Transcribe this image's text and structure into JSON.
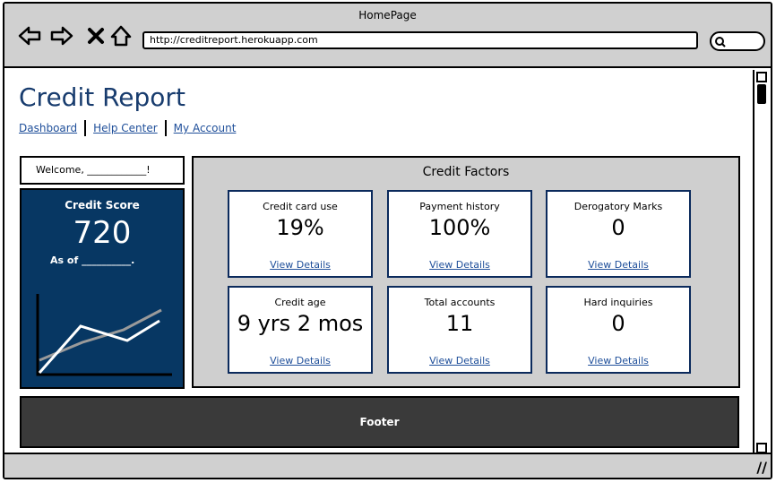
{
  "window": {
    "title": "HomePage",
    "url": "http://creditreport.herokuapp.com"
  },
  "page": {
    "title": "Credit Report",
    "links": [
      "Dashboard",
      "Help Center",
      "My Account"
    ]
  },
  "welcome": "Welcome, ____________!",
  "score": {
    "label": "Credit Score",
    "value": "720",
    "as_of": "As of __________."
  },
  "factors": {
    "title": "Credit Factors",
    "cards": [
      {
        "label": "Credit card use",
        "value": "19%",
        "link": "View Details"
      },
      {
        "label": "Payment history",
        "value": "100%",
        "link": "View Details"
      },
      {
        "label": "Derogatory Marks",
        "value": "0",
        "link": "View Details"
      },
      {
        "label": "Credit age",
        "value": "9 yrs 2 mos",
        "link": "View Details"
      },
      {
        "label": "Total accounts",
        "value": "11",
        "link": "View Details"
      },
      {
        "label": "Hard inquiries",
        "value": "0",
        "link": "View Details"
      }
    ]
  },
  "footer": "Footer",
  "colors": {
    "accent": "#073763",
    "link": "#1f4f9a",
    "chrome": "#d0d0d0",
    "footer": "#3a3a3a"
  }
}
